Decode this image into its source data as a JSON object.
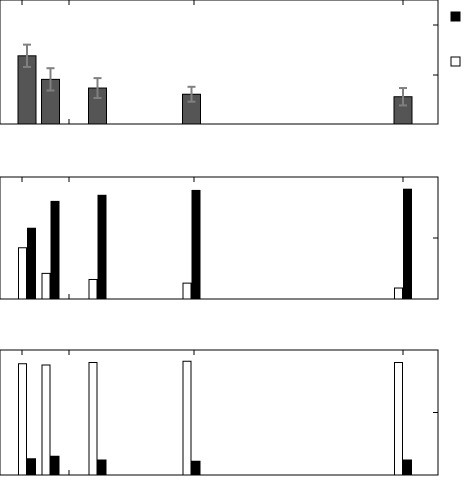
{
  "chart_data": [
    {
      "type": "bar",
      "panel": "top",
      "x": [
        1,
        2,
        4,
        8,
        17
      ],
      "ylim": [
        0,
        1.0
      ],
      "series": [
        {
          "color": "#555555",
          "values": [
            0.55,
            0.36,
            0.29,
            0.24,
            0.22
          ],
          "error": [
            0.09,
            0.09,
            0.08,
            0.06,
            0.07
          ]
        }
      ],
      "error_bar_color": "#808080"
    },
    {
      "type": "bar",
      "panel": "middle",
      "x": [
        1,
        2,
        4,
        8,
        17
      ],
      "ylim": [
        0,
        1.0
      ],
      "series": [
        {
          "fill": "#ffffff",
          "values": [
            0.42,
            0.21,
            0.16,
            0.13,
            0.09
          ]
        },
        {
          "fill": "#000000",
          "values": [
            0.58,
            0.8,
            0.85,
            0.89,
            0.9
          ]
        }
      ]
    },
    {
      "type": "bar",
      "panel": "bottom",
      "x": [
        1,
        2,
        4,
        8,
        17
      ],
      "ylim": [
        0,
        1.0
      ],
      "series": [
        {
          "fill": "#ffffff",
          "values": [
            0.89,
            0.88,
            0.9,
            0.91,
            0.9
          ]
        },
        {
          "fill": "#000000",
          "values": [
            0.13,
            0.15,
            0.12,
            0.11,
            0.12
          ]
        }
      ]
    }
  ],
  "legend": [
    {
      "fill": "#000000"
    },
    {
      "fill": "#ffffff"
    }
  ]
}
